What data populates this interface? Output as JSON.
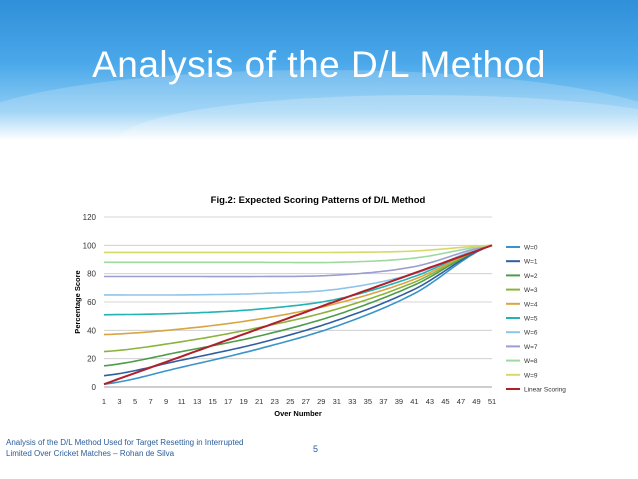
{
  "slide": {
    "title": "Analysis of the D/L Method",
    "footer": "Analysis of the D/L Method Used for Target Resetting in Interrupted Limited Over Cricket Matches – Rohan  de Silva",
    "page_number": "5"
  },
  "colors": {
    "banner": "#2f8fd8",
    "title_text": "#ffffff",
    "footer_text": "#2a5d9a"
  },
  "chart_data": {
    "type": "line",
    "title": "Fig.2: Expected Scoring Patterns of D/L Method",
    "xlabel": "Over Number",
    "ylabel": "Percentage Score",
    "ylim": [
      0,
      120
    ],
    "yticks": [
      0,
      20,
      40,
      60,
      80,
      100,
      120
    ],
    "xlim": [
      1,
      51
    ],
    "xticks": [
      "1",
      "3",
      "5",
      "7",
      "9",
      "11",
      "13",
      "15",
      "17",
      "19",
      "21",
      "23",
      "25",
      "27",
      "29",
      "31",
      "33",
      "35",
      "37",
      "39",
      "41",
      "43",
      "45",
      "47",
      "49",
      "51"
    ],
    "grid": "horizontal",
    "legend_position": "right",
    "series": [
      {
        "name": "W=0",
        "color": "#3a94c8",
        "x": [
          1,
          11,
          21,
          31,
          41,
          51
        ],
        "values": [
          2,
          14,
          27,
          43,
          66,
          100
        ]
      },
      {
        "name": "W=1",
        "color": "#2f5fa0",
        "x": [
          1,
          11,
          21,
          31,
          41,
          51
        ],
        "values": [
          8,
          19,
          31,
          47,
          69,
          100
        ]
      },
      {
        "name": "W=2",
        "color": "#4d9c4a",
        "x": [
          1,
          11,
          21,
          31,
          41,
          51
        ],
        "values": [
          15,
          25,
          36,
          51,
          72,
          100
        ]
      },
      {
        "name": "W=3",
        "color": "#8cb33c",
        "x": [
          1,
          11,
          21,
          31,
          41,
          51
        ],
        "values": [
          25,
          32,
          42,
          55,
          74,
          100
        ]
      },
      {
        "name": "W=4",
        "color": "#d9a441",
        "x": [
          1,
          11,
          21,
          31,
          41,
          51
        ],
        "values": [
          37,
          41,
          48,
          59,
          76,
          100
        ]
      },
      {
        "name": "W=5",
        "color": "#22b3b5",
        "x": [
          1,
          11,
          21,
          31,
          41,
          51
        ],
        "values": [
          51,
          52,
          55,
          62,
          78,
          100
        ]
      },
      {
        "name": "W=6",
        "color": "#8fc4ea",
        "x": [
          1,
          11,
          21,
          31,
          41,
          51
        ],
        "values": [
          65,
          65,
          66,
          69,
          80,
          100
        ]
      },
      {
        "name": "W=7",
        "color": "#9a9ed0",
        "x": [
          1,
          11,
          21,
          31,
          41,
          51
        ],
        "values": [
          78,
          78,
          78,
          79,
          85,
          100
        ]
      },
      {
        "name": "W=8",
        "color": "#9ed9a0",
        "x": [
          1,
          11,
          21,
          31,
          41,
          51
        ],
        "values": [
          88,
          88,
          88,
          88,
          91,
          100
        ]
      },
      {
        "name": "W=9",
        "color": "#d8d86a",
        "x": [
          1,
          11,
          21,
          31,
          41,
          51
        ],
        "values": [
          95,
          95,
          95,
          95,
          96,
          100
        ]
      },
      {
        "name": "Linear Scoring",
        "color": "#b0202a",
        "x": [
          1,
          51
        ],
        "values": [
          2,
          100
        ]
      }
    ]
  }
}
